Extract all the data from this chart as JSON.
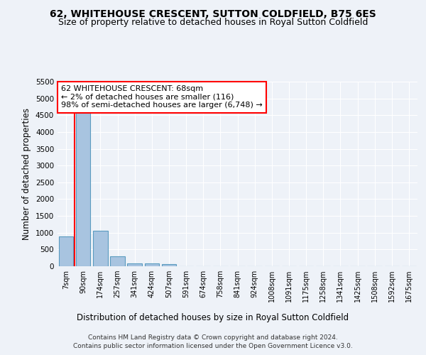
{
  "title1": "62, WHITEHOUSE CRESCENT, SUTTON COLDFIELD, B75 6ES",
  "title2": "Size of property relative to detached houses in Royal Sutton Coldfield",
  "xlabel": "Distribution of detached houses by size in Royal Sutton Coldfield",
  "ylabel": "Number of detached properties",
  "footnote1": "Contains HM Land Registry data © Crown copyright and database right 2024.",
  "footnote2": "Contains public sector information licensed under the Open Government Licence v3.0.",
  "bar_labels": [
    "7sqm",
    "90sqm",
    "174sqm",
    "257sqm",
    "341sqm",
    "424sqm",
    "507sqm",
    "591sqm",
    "674sqm",
    "758sqm",
    "841sqm",
    "924sqm",
    "1008sqm",
    "1091sqm",
    "1175sqm",
    "1258sqm",
    "1341sqm",
    "1425sqm",
    "1508sqm",
    "1592sqm",
    "1675sqm"
  ],
  "bar_values": [
    880,
    4560,
    1060,
    290,
    85,
    85,
    55,
    0,
    0,
    0,
    0,
    0,
    0,
    0,
    0,
    0,
    0,
    0,
    0,
    0,
    0
  ],
  "bar_color": "#a8c4e0",
  "bar_edge_color": "#5a9bc0",
  "annotation_text": "62 WHITEHOUSE CRESCENT: 68sqm\n← 2% of detached houses are smaller (116)\n98% of semi-detached houses are larger (6,748) →",
  "annotation_box_color": "white",
  "annotation_box_edge": "red",
  "vline_color": "red",
  "ylim": [
    0,
    5500
  ],
  "yticks": [
    0,
    500,
    1000,
    1500,
    2000,
    2500,
    3000,
    3500,
    4000,
    4500,
    5000,
    5500
  ],
  "bg_color": "#eef2f8",
  "plot_bg_color": "#eef2f8",
  "grid_color": "white",
  "title1_fontsize": 10,
  "title2_fontsize": 9,
  "axis_label_fontsize": 8.5,
  "tick_fontsize": 7.5,
  "annotation_fontsize": 8,
  "footnote_fontsize": 6.5
}
